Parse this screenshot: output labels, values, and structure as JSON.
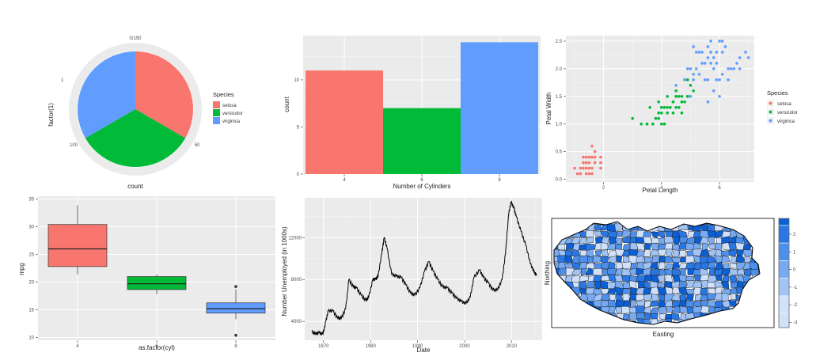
{
  "chart_data": [
    {
      "id": "pie",
      "type": "pie",
      "title": "",
      "xlabel": "count",
      "ylabel": "factor(1)",
      "y_tick": "1",
      "radial_ticks": [
        "0/150",
        "50",
        "100"
      ],
      "radial_tick_values": [
        0,
        50,
        100
      ],
      "total": 150,
      "legend_title": "Species",
      "legend_position": "right",
      "slices": [
        {
          "name": "setosa",
          "value": 50,
          "color": "#F8766D"
        },
        {
          "name": "versicolor",
          "value": 50,
          "color": "#00BA38"
        },
        {
          "name": "virginica",
          "value": 50,
          "color": "#619CFF"
        }
      ]
    },
    {
      "id": "bar",
      "type": "bar",
      "title": "",
      "xlabel": "Number of Cylinders",
      "ylabel": "count",
      "categories": [
        "4",
        "6",
        "8"
      ],
      "values": [
        11,
        7,
        14
      ],
      "colors": [
        "#F8766D",
        "#00BA38",
        "#619CFF"
      ],
      "ylim": [
        0,
        14.7
      ],
      "yticks": [
        0,
        5,
        10
      ],
      "grid": true
    },
    {
      "id": "scatter",
      "type": "scatter",
      "title": "",
      "xlabel": "Petal Length",
      "ylabel": "Petal Width",
      "xlim": [
        0.7,
        7.2
      ],
      "ylim": [
        -0.05,
        2.6
      ],
      "xticks": [
        2,
        4,
        6
      ],
      "yticks": [
        0.0,
        0.5,
        1.0,
        1.5,
        2.0,
        2.5
      ],
      "ytick_labels": [
        "0.0",
        "0.5",
        "1.0",
        "1.5",
        "2.0",
        "2.5"
      ],
      "legend_title": "Species",
      "legend_position": "right",
      "series": [
        {
          "name": "setosa",
          "color": "#F8766D",
          "points": [
            [
              1.4,
              0.2
            ],
            [
              1.3,
              0.2
            ],
            [
              1.5,
              0.2
            ],
            [
              1.7,
              0.4
            ],
            [
              1.4,
              0.3
            ],
            [
              1.5,
              0.1
            ],
            [
              1.6,
              0.2
            ],
            [
              1.1,
              0.1
            ],
            [
              1.2,
              0.2
            ],
            [
              1.3,
              0.4
            ],
            [
              1.0,
              0.2
            ],
            [
              1.7,
              0.5
            ],
            [
              1.9,
              0.2
            ],
            [
              1.6,
              0.4
            ],
            [
              1.5,
              0.4
            ],
            [
              1.4,
              0.1
            ],
            [
              1.5,
              0.3
            ],
            [
              1.9,
              0.4
            ],
            [
              1.6,
              0.6
            ],
            [
              1.3,
              0.3
            ],
            [
              1.2,
              0.1
            ],
            [
              1.7,
              0.3
            ],
            [
              1.4,
              0.4
            ],
            [
              1.6,
              0.1
            ],
            [
              1.9,
              0.3
            ]
          ]
        },
        {
          "name": "versicolor",
          "color": "#00BA38",
          "points": [
            [
              4.7,
              1.4
            ],
            [
              4.5,
              1.5
            ],
            [
              4.9,
              1.5
            ],
            [
              4.0,
              1.3
            ],
            [
              4.6,
              1.5
            ],
            [
              3.3,
              1.0
            ],
            [
              4.6,
              1.3
            ],
            [
              3.9,
              1.4
            ],
            [
              3.5,
              1.0
            ],
            [
              4.2,
              1.5
            ],
            [
              4.0,
              1.0
            ],
            [
              4.7,
              1.4
            ],
            [
              3.6,
              1.3
            ],
            [
              4.4,
              1.4
            ],
            [
              4.1,
              1.0
            ],
            [
              4.5,
              1.5
            ],
            [
              3.9,
              1.1
            ],
            [
              4.8,
              1.8
            ],
            [
              4.0,
              1.3
            ],
            [
              4.9,
              1.5
            ],
            [
              4.7,
              1.2
            ],
            [
              4.3,
              1.3
            ],
            [
              4.4,
              1.4
            ],
            [
              5.0,
              1.7
            ],
            [
              3.5,
              1.0
            ],
            [
              3.8,
              1.1
            ],
            [
              3.7,
              1.0
            ],
            [
              3.9,
              1.2
            ],
            [
              5.1,
              1.6
            ],
            [
              4.5,
              1.6
            ],
            [
              4.7,
              1.5
            ],
            [
              4.1,
              1.3
            ],
            [
              4.0,
              1.2
            ],
            [
              4.4,
              1.2
            ],
            [
              3.0,
              1.1
            ],
            [
              4.2,
              1.3
            ],
            [
              4.2,
              1.2
            ],
            [
              4.3,
              1.3
            ],
            [
              4.8,
              1.4
            ],
            [
              4.5,
              1.3
            ],
            [
              4.9,
              1.8
            ]
          ]
        },
        {
          "name": "virginica",
          "color": "#619CFF",
          "points": [
            [
              6.0,
              2.5
            ],
            [
              5.1,
              1.9
            ],
            [
              5.9,
              2.1
            ],
            [
              5.6,
              1.8
            ],
            [
              5.8,
              2.2
            ],
            [
              6.6,
              2.1
            ],
            [
              4.5,
              1.7
            ],
            [
              6.3,
              1.8
            ],
            [
              6.1,
              2.5
            ],
            [
              5.3,
              1.9
            ],
            [
              5.5,
              2.1
            ],
            [
              5.0,
              2.0
            ],
            [
              5.1,
              2.4
            ],
            [
              5.3,
              2.3
            ],
            [
              6.7,
              2.2
            ],
            [
              6.9,
              2.3
            ],
            [
              5.7,
              2.3
            ],
            [
              4.9,
              2.0
            ],
            [
              6.7,
              2.0
            ],
            [
              5.7,
              2.1
            ],
            [
              6.0,
              1.8
            ],
            [
              4.8,
              1.8
            ],
            [
              5.8,
              1.6
            ],
            [
              6.4,
              2.0
            ],
            [
              5.6,
              2.2
            ],
            [
              5.6,
              1.4
            ],
            [
              6.1,
              2.3
            ],
            [
              5.5,
              1.8
            ],
            [
              5.4,
              2.1
            ],
            [
              5.2,
              2.3
            ],
            [
              6.1,
              1.9
            ],
            [
              5.9,
              2.3
            ],
            [
              5.6,
              2.4
            ],
            [
              7.0,
              2.2
            ],
            [
              5.2,
              2.0
            ],
            [
              6.5,
              2.0
            ],
            [
              6.2,
              2.4
            ],
            [
              5.8,
              2.0
            ],
            [
              5.4,
              2.3
            ],
            [
              6.0,
              1.5
            ],
            [
              5.0,
              1.5
            ],
            [
              5.1,
              1.8
            ],
            [
              5.7,
              2.5
            ],
            [
              6.3,
              2.0
            ],
            [
              5.9,
              1.8
            ]
          ]
        }
      ]
    },
    {
      "id": "box",
      "type": "box",
      "title": "",
      "xlabel": "as.factor(cyl)",
      "ylabel": "mpg",
      "ylim": [
        9.5,
        35.5
      ],
      "yticks": [
        10,
        15,
        20,
        25,
        30,
        35
      ],
      "grid": true,
      "boxes": [
        {
          "category": "4",
          "min": 21.4,
          "q1": 22.8,
          "median": 26.0,
          "q3": 30.4,
          "max": 33.9,
          "outliers": [],
          "color": "#F8766D"
        },
        {
          "category": "6",
          "min": 17.8,
          "q1": 18.65,
          "median": 19.7,
          "q3": 21.0,
          "max": 21.4,
          "outliers": [],
          "color": "#00BA38"
        },
        {
          "category": "8",
          "min": 13.3,
          "q1": 14.4,
          "median": 15.2,
          "q3": 16.25,
          "max": 18.7,
          "outliers": [
            10.4,
            19.2
          ],
          "color": "#619CFF"
        }
      ]
    },
    {
      "id": "line",
      "type": "line",
      "title": "",
      "xlabel": "Date",
      "ylabel": "Number Unemployed (in 1000s)",
      "xlim": [
        1966,
        2016.5
      ],
      "ylim": [
        2200,
        15800
      ],
      "xticks": [
        1970,
        1980,
        1990,
        2000,
        2010
      ],
      "yticks": [
        4000,
        8000,
        12000
      ],
      "series": [
        {
          "name": "",
          "color": "#000000",
          "points": [
            [
              1967.5,
              3000
            ],
            [
              1968.3,
              2800
            ],
            [
              1969.0,
              2900
            ],
            [
              1969.9,
              2800
            ],
            [
              1970.5,
              4000
            ],
            [
              1971.0,
              5000
            ],
            [
              1972.0,
              5000
            ],
            [
              1973.0,
              4300
            ],
            [
              1973.8,
              4300
            ],
            [
              1974.7,
              5200
            ],
            [
              1975.4,
              8000
            ],
            [
              1976.3,
              7300
            ],
            [
              1977.0,
              7200
            ],
            [
              1978.0,
              6500
            ],
            [
              1979.0,
              6000
            ],
            [
              1979.6,
              6300
            ],
            [
              1980.5,
              8000
            ],
            [
              1981.0,
              8000
            ],
            [
              1981.6,
              8300
            ],
            [
              1982.4,
              10500
            ],
            [
              1982.9,
              12000
            ],
            [
              1983.5,
              11000
            ],
            [
              1984.5,
              8500
            ],
            [
              1985.5,
              8300
            ],
            [
              1986.5,
              8200
            ],
            [
              1987.5,
              7500
            ],
            [
              1988.5,
              6700
            ],
            [
              1989.4,
              6500
            ],
            [
              1990.5,
              7200
            ],
            [
              1991.5,
              8800
            ],
            [
              1992.4,
              9700
            ],
            [
              1993.3,
              8800
            ],
            [
              1994.3,
              8000
            ],
            [
              1995.3,
              7300
            ],
            [
              1996.3,
              7200
            ],
            [
              1997.3,
              6700
            ],
            [
              1998.3,
              6200
            ],
            [
              1999.3,
              5900
            ],
            [
              2000.3,
              5700
            ],
            [
              2001.2,
              6300
            ],
            [
              2002.0,
              8200
            ],
            [
              2003.2,
              8900
            ],
            [
              2004.0,
              8200
            ],
            [
              2005.0,
              7700
            ],
            [
              2006.0,
              7000
            ],
            [
              2007.0,
              7000
            ],
            [
              2008.0,
              8000
            ],
            [
              2008.7,
              10500
            ],
            [
              2009.4,
              14300
            ],
            [
              2009.9,
              15400
            ],
            [
              2010.5,
              14800
            ],
            [
              2011.0,
              14000
            ],
            [
              2012.0,
              12600
            ],
            [
              2013.0,
              11300
            ],
            [
              2014.0,
              9500
            ],
            [
              2014.8,
              8700
            ],
            [
              2015.3,
              8400
            ]
          ]
        }
      ]
    },
    {
      "id": "map",
      "type": "heatmap",
      "title": "",
      "xlabel": "Easting",
      "ylabel": "Northing",
      "legend_ticks": [
        "2",
        "1",
        "0",
        "-1",
        "-2",
        "-3"
      ],
      "legend_tick_values": [
        2,
        1,
        0,
        -1,
        -2,
        -3
      ],
      "legend_range": [
        -3.3,
        2.9
      ],
      "legend_colors": [
        "#0b5fd3",
        "#2a76e2",
        "#4d8fea",
        "#77aaf0",
        "#a2c4f5",
        "#d1e1fa"
      ]
    }
  ]
}
